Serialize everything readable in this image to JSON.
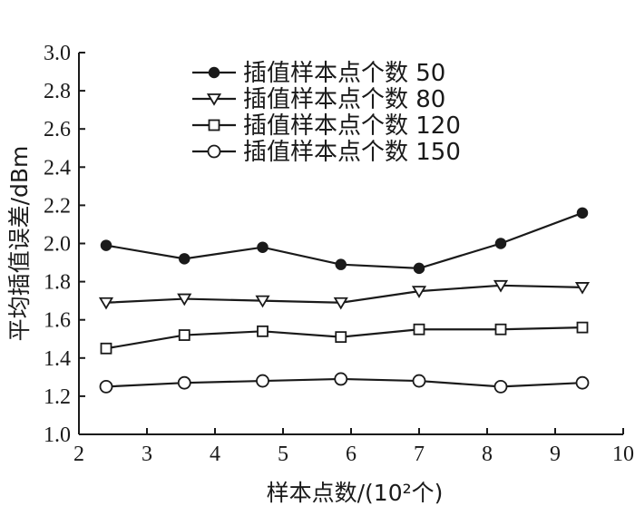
{
  "chart_data": {
    "type": "line",
    "xlabel": "样本点数/(10²个)",
    "ylabel": "平均插值误差/dBm",
    "xlim": [
      2,
      10
    ],
    "ylim": [
      1.0,
      3.0
    ],
    "xticks": [
      "2",
      "3",
      "4",
      "5",
      "6",
      "7",
      "8",
      "9",
      "10"
    ],
    "yticks": [
      "1.0",
      "1.2",
      "1.4",
      "1.6",
      "1.8",
      "2.0",
      "2.2",
      "2.4",
      "2.6",
      "2.8",
      "3.0"
    ],
    "legend_position": "top-center",
    "x": [
      2.4,
      3.55,
      4.7,
      5.85,
      7.0,
      8.2,
      9.4
    ],
    "series": [
      {
        "name": "插值样本点个数 50",
        "marker": "filled-circle",
        "values": [
          1.99,
          1.92,
          1.98,
          1.89,
          1.87,
          2.0,
          2.16
        ]
      },
      {
        "name": "插值样本点个数 80",
        "marker": "down-triangle",
        "values": [
          1.69,
          1.71,
          1.7,
          1.69,
          1.75,
          1.78,
          1.77
        ]
      },
      {
        "name": "插值样本点个数 120",
        "marker": "square",
        "values": [
          1.45,
          1.52,
          1.54,
          1.51,
          1.55,
          1.55,
          1.56
        ]
      },
      {
        "name": "插值样本点个数 150",
        "marker": "open-circle",
        "values": [
          1.25,
          1.27,
          1.28,
          1.29,
          1.28,
          1.25,
          1.27
        ]
      }
    ]
  }
}
